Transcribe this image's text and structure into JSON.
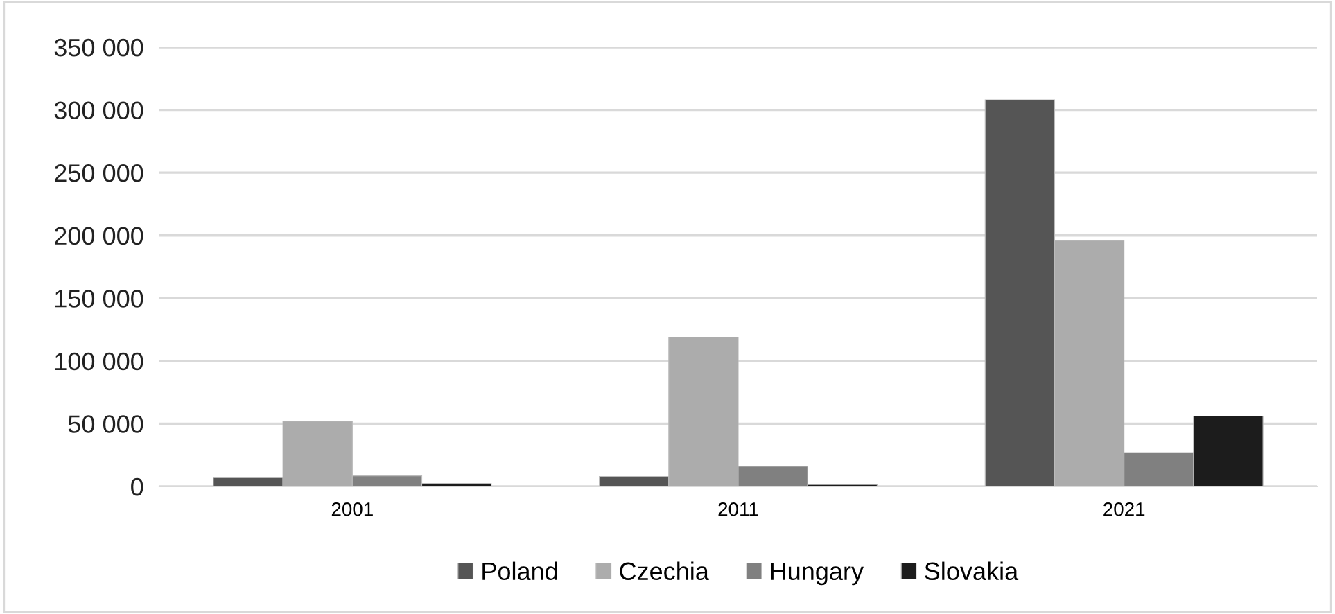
{
  "chart_data": {
    "type": "bar",
    "categories": [
      "2001",
      "2011",
      "2021"
    ],
    "series": [
      {
        "name": "Poland",
        "color": "#555555",
        "values": [
          7000,
          8000,
          308000
        ]
      },
      {
        "name": "Czechia",
        "color": "#acacac",
        "values": [
          52000,
          119000,
          196000
        ]
      },
      {
        "name": "Hungary",
        "color": "#808080",
        "values": [
          8500,
          16000,
          27000
        ]
      },
      {
        "name": "Slovakia",
        "color": "#1c1c1c",
        "values": [
          2500,
          1500,
          56000
        ]
      }
    ],
    "ylim": [
      0,
      350000
    ],
    "yticks": [
      {
        "value": 0,
        "label": "0"
      },
      {
        "value": 50000,
        "label": "50 000"
      },
      {
        "value": 100000,
        "label": "100 000"
      },
      {
        "value": 150000,
        "label": "150 000"
      },
      {
        "value": 200000,
        "label": "200 000"
      },
      {
        "value": 250000,
        "label": "250 000"
      },
      {
        "value": 300000,
        "label": "300 000"
      },
      {
        "value": 350000,
        "label": "350 000"
      }
    ],
    "grid": "y",
    "legend": "bottom"
  }
}
